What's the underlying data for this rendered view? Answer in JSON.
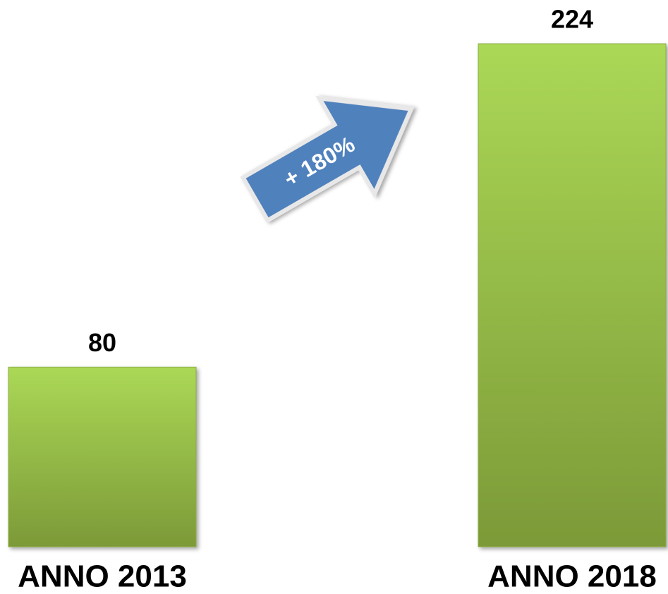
{
  "chart_data": {
    "type": "bar",
    "categories": [
      "ANNO 2013",
      "ANNO 2018"
    ],
    "values": [
      80,
      224
    ],
    "color": "#95bb44",
    "annotations": [
      "+ 180%"
    ]
  }
}
